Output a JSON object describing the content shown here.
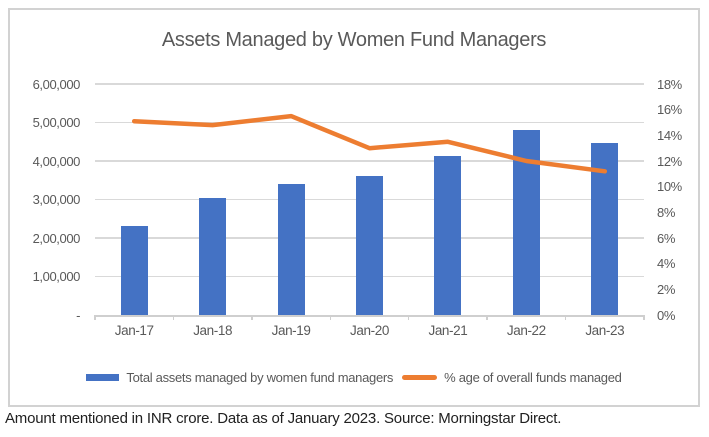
{
  "footnote": "Amount mentioned in INR crore. Data as of January 2023. Source: Morningstar Direct.",
  "colors": {
    "bar": "#4472C4",
    "line": "#ED7D31",
    "gridline": "#D9D9D9",
    "axis_text": "#595959",
    "title_text": "#595959",
    "border": "#D2D2D2"
  },
  "chart_data": {
    "type": "combo",
    "title": "Assets Managed by Women Fund Managers",
    "categories": [
      "Jan-17",
      "Jan-18",
      "Jan-19",
      "Jan-20",
      "Jan-21",
      "Jan-22",
      "Jan-23"
    ],
    "series": [
      {
        "name": "Total assets managed by women fund managers",
        "chart_type": "bar",
        "axis": "left",
        "values": [
          232000,
          305000,
          341000,
          360000,
          412000,
          481000,
          446000
        ]
      },
      {
        "name": "% age of overall funds managed",
        "chart_type": "line",
        "axis": "right",
        "values": [
          15.1,
          14.8,
          15.5,
          13.0,
          13.5,
          12.0,
          11.2
        ]
      }
    ],
    "left_axis": {
      "min": 0,
      "max": 600000,
      "tick_step": 100000,
      "tick_labels": [
        "-",
        "1,00,000",
        "2,00,000",
        "3,00,000",
        "4,00,000",
        "5,00,000",
        "6,00,000"
      ]
    },
    "right_axis": {
      "min": 0,
      "max": 18,
      "tick_step": 2,
      "tick_labels": [
        "0%",
        "2%",
        "4%",
        "6%",
        "8%",
        "10%",
        "12%",
        "14%",
        "16%",
        "18%"
      ]
    },
    "legend_position": "bottom",
    "grid": "horizontal"
  }
}
